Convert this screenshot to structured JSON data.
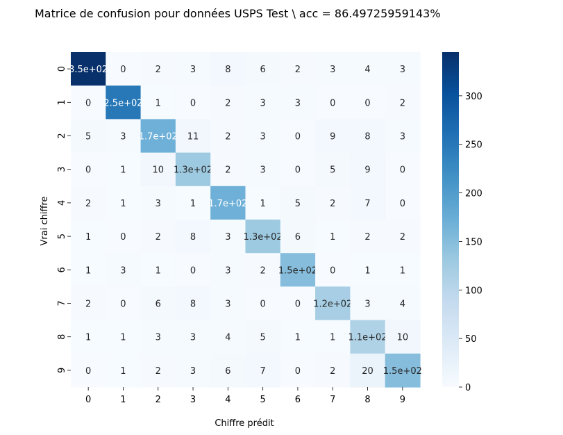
{
  "chart_data": {
    "type": "heatmap",
    "title": "Matrice de confusion pour données USPS Test \\ acc = 86.49725959143%",
    "xlabel": "Chiffre prédit",
    "ylabel": "Vrai chiffre",
    "x_categories": [
      "0",
      "1",
      "2",
      "3",
      "4",
      "5",
      "6",
      "7",
      "8",
      "9"
    ],
    "y_categories": [
      "0",
      "1",
      "2",
      "3",
      "4",
      "5",
      "6",
      "7",
      "8",
      "9"
    ],
    "values": [
      [
        350,
        0,
        2,
        3,
        8,
        6,
        2,
        3,
        4,
        3
      ],
      [
        0,
        250,
        1,
        0,
        2,
        3,
        3,
        0,
        0,
        2
      ],
      [
        5,
        3,
        170,
        11,
        2,
        3,
        0,
        9,
        8,
        3
      ],
      [
        0,
        1,
        10,
        130,
        2,
        3,
        0,
        5,
        9,
        0
      ],
      [
        2,
        1,
        3,
        1,
        170,
        1,
        5,
        2,
        7,
        0
      ],
      [
        1,
        0,
        2,
        8,
        3,
        130,
        6,
        1,
        2,
        2
      ],
      [
        1,
        3,
        1,
        0,
        3,
        2,
        150,
        0,
        1,
        1
      ],
      [
        2,
        0,
        6,
        8,
        3,
        0,
        0,
        120,
        3,
        4
      ],
      [
        1,
        1,
        3,
        3,
        4,
        5,
        1,
        1,
        110,
        10
      ],
      [
        0,
        1,
        2,
        3,
        6,
        7,
        0,
        2,
        20,
        150
      ]
    ],
    "cell_labels": [
      [
        "3.5e+02",
        "0",
        "2",
        "3",
        "8",
        "6",
        "2",
        "3",
        "4",
        "3"
      ],
      [
        "0",
        "2.5e+02",
        "1",
        "0",
        "2",
        "3",
        "3",
        "0",
        "0",
        "2"
      ],
      [
        "5",
        "3",
        "1.7e+02",
        "11",
        "2",
        "3",
        "0",
        "9",
        "8",
        "3"
      ],
      [
        "0",
        "1",
        "10",
        "1.3e+02",
        "2",
        "3",
        "0",
        "5",
        "9",
        "0"
      ],
      [
        "2",
        "1",
        "3",
        "1",
        "1.7e+02",
        "1",
        "5",
        "2",
        "7",
        "0"
      ],
      [
        "1",
        "0",
        "2",
        "8",
        "3",
        "1.3e+02",
        "6",
        "1",
        "2",
        "2"
      ],
      [
        "1",
        "3",
        "1",
        "0",
        "3",
        "2",
        "1.5e+02",
        "0",
        "1",
        "1"
      ],
      [
        "2",
        "0",
        "6",
        "8",
        "3",
        "0",
        "0",
        "1.2e+02",
        "3",
        "4"
      ],
      [
        "1",
        "1",
        "3",
        "3",
        "4",
        "5",
        "1",
        "1",
        "1.1e+02",
        "10"
      ],
      [
        "0",
        "1",
        "2",
        "3",
        "6",
        "7",
        "0",
        "2",
        "20",
        "1.5e+02"
      ]
    ],
    "colormap": "Blues",
    "vmin": 0,
    "vmax": 345,
    "colorbar_ticks": [
      "0",
      "50",
      "100",
      "150",
      "200",
      "250",
      "300"
    ],
    "colorbar_tick_values": [
      0,
      50,
      100,
      150,
      200,
      250,
      300
    ]
  }
}
